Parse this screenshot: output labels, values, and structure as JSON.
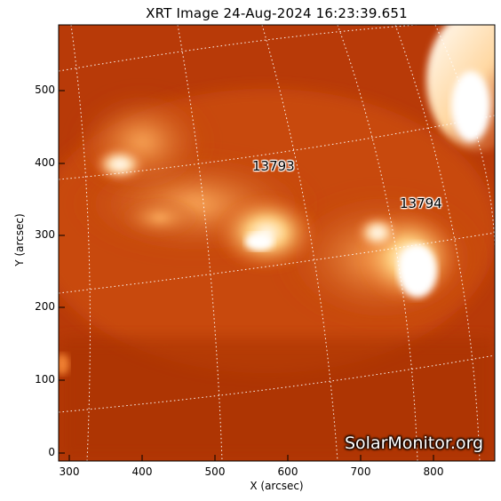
{
  "title": "XRT Image 24-Aug-2024 16:23:39.651",
  "axes": {
    "xlabel": "X (arcsec)",
    "ylabel": "Y (arcsec)",
    "x_ticks": [
      "300",
      "400",
      "500",
      "600",
      "700",
      "800"
    ],
    "y_ticks": [
      "0",
      "100",
      "200",
      "300",
      "400",
      "500"
    ]
  },
  "active_regions": [
    {
      "label": "13793"
    },
    {
      "label": "13794"
    }
  ],
  "watermark": "SolarMonitor.org",
  "colors": {
    "background": "#b83a08",
    "bright": "#fff4e0",
    "grid": "#ffffff"
  }
}
